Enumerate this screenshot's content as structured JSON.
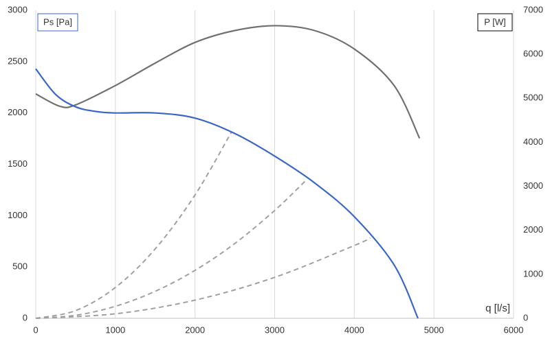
{
  "chart_data": {
    "type": "line",
    "x_label": "q [l/s]",
    "y_label": "Ps [Pa]",
    "y2_label": "P [W]",
    "xlim": [
      0,
      6000
    ],
    "xticks": [
      0,
      1000,
      2000,
      3000,
      4000,
      5000,
      6000
    ],
    "ylim": [
      0,
      3000
    ],
    "yticks": [
      0,
      500,
      1000,
      1500,
      2000,
      2500,
      3000
    ],
    "y2lim": [
      0,
      7000
    ],
    "y2ticks": [
      0,
      1000,
      2000,
      3000,
      4000,
      5000,
      6000,
      7000
    ],
    "grid": true,
    "series": [
      {
        "color": "#3a66c8",
        "dash": false,
        "x": [
          0,
          250,
          500,
          750,
          1000,
          1500,
          2000,
          2500,
          3000,
          3500,
          4000,
          4500,
          4800
        ],
        "values": [
          2430,
          2180,
          2060,
          2015,
          2000,
          2000,
          1950,
          1800,
          1580,
          1320,
          990,
          520,
          0
        ]
      },
      {
        "color": "#707070",
        "dash": false,
        "axis": "y2",
        "x": [
          0,
          300,
          500,
          1000,
          1500,
          2000,
          2500,
          3000,
          3500,
          4000,
          4500,
          4820
        ],
        "values": [
          5100,
          4820,
          4850,
          5290,
          5800,
          6270,
          6540,
          6650,
          6540,
          6120,
          5290,
          4090
        ]
      },
      {
        "color": "#a0a0a0",
        "dash": true,
        "x": [
          0,
          500,
          1000,
          1500,
          2000,
          2460
        ],
        "values": [
          0,
          75,
          300,
          676,
          1201,
          1817
        ]
      },
      {
        "color": "#a0a0a0",
        "dash": true,
        "x": [
          0,
          500,
          1000,
          1500,
          2000,
          2500,
          3000,
          3400
        ],
        "values": [
          0,
          29,
          117,
          263,
          467,
          729,
          1050,
          1349
        ]
      },
      {
        "color": "#a0a0a0",
        "dash": true,
        "x": [
          0,
          1000,
          2000,
          3000,
          4000,
          4200
        ],
        "values": [
          0,
          44,
          177,
          399,
          709,
          782
        ]
      }
    ]
  }
}
